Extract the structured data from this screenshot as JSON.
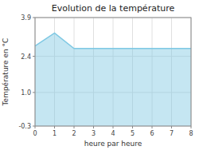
{
  "chart_data": {
    "type": "area",
    "title": "Evolution de la température",
    "x_label": "heure par heure",
    "y_label": "Température en °C",
    "x": [
      0,
      1,
      2,
      3,
      4,
      5,
      6,
      7,
      8
    ],
    "values": [
      2.8,
      3.3,
      2.7,
      2.7,
      2.7,
      2.7,
      2.7,
      2.7,
      2.7
    ],
    "xlim": [
      0,
      8
    ],
    "ylim": [
      -0.3,
      3.9
    ],
    "xticks": [
      0,
      1,
      2,
      3,
      4,
      5,
      6,
      7,
      8
    ],
    "yticks": [
      -0.3,
      {
        "value": 1.0,
        "label": "1.0"
      },
      2.4,
      3.9
    ],
    "color": "#7ec8e3",
    "grid": true
  }
}
